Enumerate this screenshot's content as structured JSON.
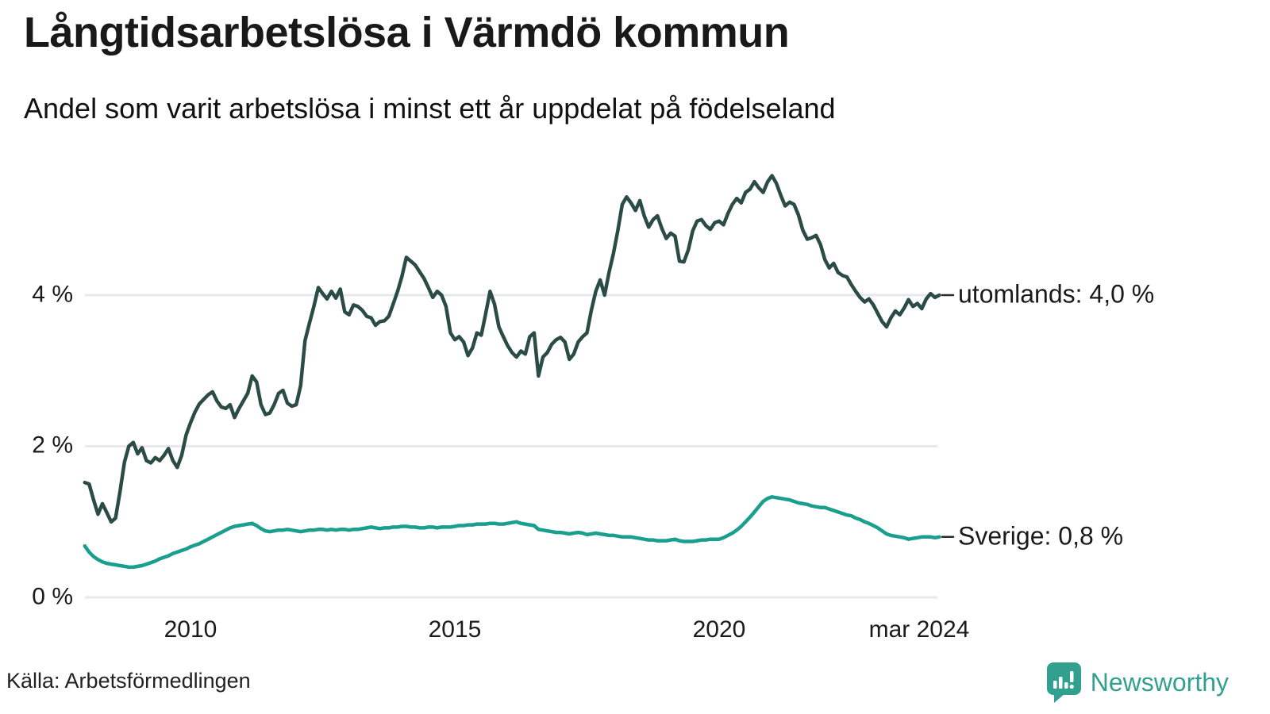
{
  "header": {
    "title": "Långtidsarbetslösa i Värmdö kommun",
    "subtitle": "Andel som varit arbetslösa i minst ett år uppdelat på födelseland"
  },
  "footer": {
    "source": "Källa: Arbetsförmedlingen",
    "brand": "Newsworthy",
    "brand_color": "#32a08f"
  },
  "chart_data": {
    "type": "line",
    "title": "Långtidsarbetslösa i Värmdö kommun",
    "subtitle": "Andel som varit arbetslösa i minst ett år uppdelat på födelseland",
    "unit": "%",
    "grid": "horizontal",
    "legend_position": "end-of-line-labels-right",
    "gridline_color": "#e7e8ec",
    "label_dash_color": "#2b2b2b",
    "x_axis": {
      "range_years": [
        2008.0,
        2024.25
      ],
      "ticks": [
        {
          "label": "2010",
          "year": 2010
        },
        {
          "label": "2015",
          "year": 2015
        },
        {
          "label": "2020",
          "year": 2020
        },
        {
          "label": "mar 2024",
          "year": 2024.17
        }
      ]
    },
    "y_axis": {
      "range": [
        0,
        5.8
      ],
      "ticks": [
        {
          "label": "0 %",
          "value": 0
        },
        {
          "label": "2 %",
          "value": 2
        },
        {
          "label": "4 %",
          "value": 4
        }
      ]
    },
    "series": [
      {
        "name": "utomlands",
        "end_label": "utomlands: 4,0 %",
        "last_value": 4.0,
        "color": "#2b4c46",
        "frequency": "monthly",
        "start": "2008-01",
        "end": "2024-03",
        "values": [
          1.52,
          1.5,
          1.29,
          1.1,
          1.24,
          1.12,
          1.0,
          1.05,
          1.4,
          1.79,
          2.0,
          2.05,
          1.9,
          1.98,
          1.81,
          1.78,
          1.85,
          1.81,
          1.88,
          1.97,
          1.81,
          1.72,
          1.88,
          2.15,
          2.31,
          2.45,
          2.56,
          2.62,
          2.68,
          2.72,
          2.6,
          2.52,
          2.5,
          2.55,
          2.38,
          2.5,
          2.6,
          2.7,
          2.93,
          2.85,
          2.55,
          2.42,
          2.44,
          2.55,
          2.7,
          2.74,
          2.57,
          2.53,
          2.55,
          2.8,
          3.4,
          3.63,
          3.85,
          4.1,
          4.02,
          3.95,
          4.05,
          3.96,
          4.08,
          3.78,
          3.74,
          3.87,
          3.85,
          3.8,
          3.72,
          3.7,
          3.6,
          3.65,
          3.66,
          3.72,
          3.88,
          4.05,
          4.25,
          4.5,
          4.45,
          4.4,
          4.31,
          4.22,
          4.1,
          3.97,
          4.05,
          4.0,
          3.85,
          3.5,
          3.41,
          3.45,
          3.38,
          3.2,
          3.3,
          3.5,
          3.47,
          3.75,
          4.05,
          3.88,
          3.58,
          3.45,
          3.33,
          3.24,
          3.18,
          3.26,
          3.22,
          3.45,
          3.5,
          2.93,
          3.18,
          3.24,
          3.35,
          3.41,
          3.44,
          3.38,
          3.15,
          3.22,
          3.38,
          3.45,
          3.5,
          3.8,
          4.05,
          4.2,
          4.0,
          4.3,
          4.55,
          4.85,
          5.2,
          5.3,
          5.22,
          5.12,
          5.25,
          5.05,
          4.9,
          5.0,
          5.05,
          4.88,
          4.75,
          4.82,
          4.78,
          4.45,
          4.44,
          4.6,
          4.85,
          4.98,
          5.0,
          4.92,
          4.87,
          4.96,
          4.98,
          4.93,
          5.08,
          5.2,
          5.28,
          5.22,
          5.36,
          5.4,
          5.5,
          5.42,
          5.36,
          5.5,
          5.58,
          5.48,
          5.32,
          5.18,
          5.23,
          5.2,
          5.06,
          4.86,
          4.74,
          4.76,
          4.79,
          4.67,
          4.47,
          4.36,
          4.42,
          4.3,
          4.26,
          4.24,
          4.14,
          4.05,
          3.97,
          3.91,
          3.95,
          3.87,
          3.76,
          3.65,
          3.58,
          3.7,
          3.79,
          3.74,
          3.83,
          3.94,
          3.85,
          3.89,
          3.82,
          3.95,
          4.02,
          3.97,
          4.0
        ]
      },
      {
        "name": "Sverige",
        "end_label": "Sverige: 0,8 %",
        "last_value": 0.8,
        "color": "#1a9e8d",
        "frequency": "monthly",
        "start": "2008-01",
        "end": "2024-03",
        "values": [
          0.68,
          0.6,
          0.54,
          0.5,
          0.47,
          0.45,
          0.44,
          0.43,
          0.42,
          0.41,
          0.4,
          0.4,
          0.41,
          0.42,
          0.44,
          0.46,
          0.48,
          0.51,
          0.53,
          0.55,
          0.58,
          0.6,
          0.62,
          0.64,
          0.67,
          0.69,
          0.71,
          0.74,
          0.77,
          0.8,
          0.83,
          0.86,
          0.89,
          0.92,
          0.94,
          0.95,
          0.96,
          0.97,
          0.98,
          0.95,
          0.91,
          0.88,
          0.87,
          0.88,
          0.89,
          0.89,
          0.9,
          0.89,
          0.88,
          0.87,
          0.88,
          0.89,
          0.89,
          0.9,
          0.9,
          0.89,
          0.9,
          0.89,
          0.9,
          0.9,
          0.89,
          0.9,
          0.9,
          0.91,
          0.92,
          0.93,
          0.92,
          0.91,
          0.92,
          0.92,
          0.93,
          0.93,
          0.94,
          0.94,
          0.93,
          0.93,
          0.92,
          0.92,
          0.93,
          0.93,
          0.92,
          0.93,
          0.93,
          0.93,
          0.94,
          0.95,
          0.95,
          0.96,
          0.96,
          0.97,
          0.97,
          0.97,
          0.98,
          0.98,
          0.97,
          0.97,
          0.98,
          0.99,
          1.0,
          0.98,
          0.97,
          0.96,
          0.95,
          0.9,
          0.89,
          0.88,
          0.87,
          0.86,
          0.86,
          0.85,
          0.84,
          0.85,
          0.86,
          0.85,
          0.83,
          0.84,
          0.85,
          0.84,
          0.83,
          0.82,
          0.82,
          0.81,
          0.8,
          0.8,
          0.8,
          0.79,
          0.78,
          0.77,
          0.76,
          0.76,
          0.75,
          0.75,
          0.75,
          0.76,
          0.77,
          0.75,
          0.74,
          0.74,
          0.74,
          0.75,
          0.76,
          0.76,
          0.77,
          0.77,
          0.77,
          0.79,
          0.82,
          0.85,
          0.89,
          0.94,
          1.0,
          1.06,
          1.13,
          1.2,
          1.27,
          1.31,
          1.33,
          1.32,
          1.31,
          1.3,
          1.29,
          1.27,
          1.25,
          1.24,
          1.23,
          1.21,
          1.2,
          1.19,
          1.19,
          1.17,
          1.15,
          1.13,
          1.11,
          1.09,
          1.08,
          1.05,
          1.03,
          1.0,
          0.98,
          0.95,
          0.92,
          0.88,
          0.84,
          0.82,
          0.81,
          0.8,
          0.79,
          0.77,
          0.78,
          0.79,
          0.8,
          0.8,
          0.8,
          0.79,
          0.8
        ]
      }
    ]
  }
}
